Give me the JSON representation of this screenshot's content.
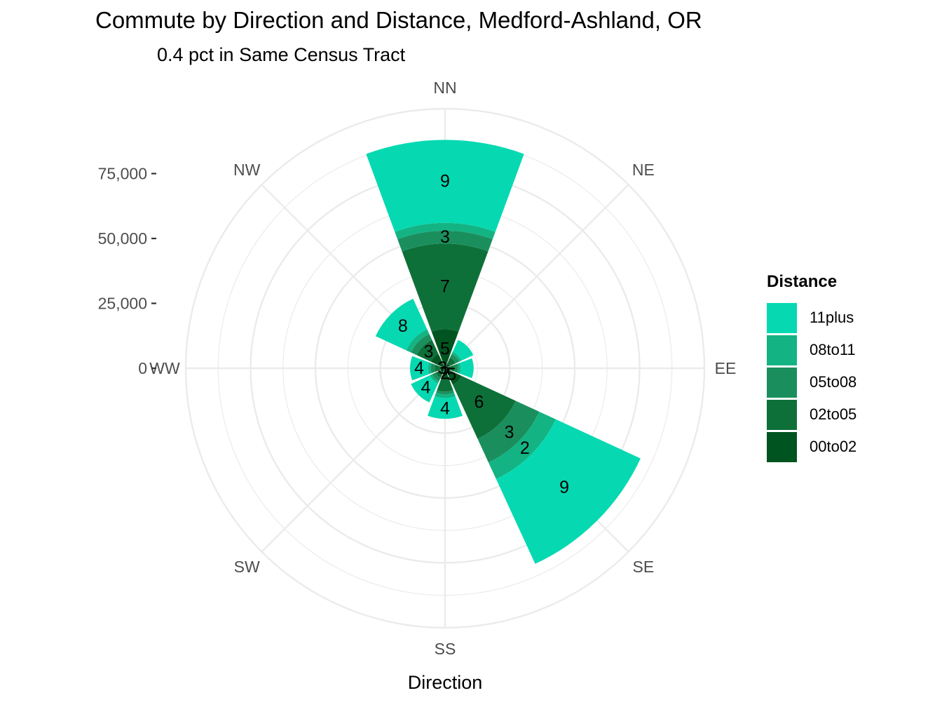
{
  "chart_data": {
    "type": "polar-stacked-bar",
    "title": "Commute by Direction and Distance, Medford-Ashland, OR",
    "subtitle": "0.4 pct in Same Census Tract",
    "xlabel": "Direction",
    "directions": [
      "NN",
      "NE",
      "EE",
      "SE",
      "SS",
      "SW",
      "WW",
      "NW"
    ],
    "radial_ticks": [
      0,
      25000,
      50000,
      75000
    ],
    "radial_tick_labels": [
      "0",
      "25,000",
      "50,000",
      "75,000"
    ],
    "rmax": 100000,
    "legend_title": "Distance",
    "series": [
      {
        "name": "00to02",
        "color": "#00541f",
        "values": [
          15000,
          2000,
          2000,
          7000,
          4000,
          2000,
          2000,
          6000
        ]
      },
      {
        "name": "02to05",
        "color": "#0e7039",
        "values": [
          33000,
          2500,
          1500,
          23000,
          5000,
          2000,
          2000,
          6000
        ]
      },
      {
        "name": "05to08",
        "color": "#1a8f5d",
        "values": [
          5000,
          1500,
          1500,
          10000,
          1000,
          1500,
          1500,
          2500
        ]
      },
      {
        "name": "08to11",
        "color": "#14b383",
        "values": [
          3000,
          1000,
          1000,
          7000,
          1500,
          1000,
          1000,
          2000
        ]
      },
      {
        "name": "11plus",
        "color": "#06d9b1",
        "values": [
          32000,
          5000,
          5000,
          36000,
          8000,
          8000,
          7000,
          13000
        ]
      }
    ],
    "bar_labels": [
      {
        "direction": "NN",
        "series": "00to02",
        "text": "5"
      },
      {
        "direction": "NN",
        "series": "02to05",
        "text": "7"
      },
      {
        "direction": "NN",
        "series": "05to08",
        "text": "3"
      },
      {
        "direction": "NN",
        "series": "11plus",
        "text": "9"
      },
      {
        "direction": "SE",
        "series": "00to02",
        "text": "5"
      },
      {
        "direction": "SE",
        "series": "02to05",
        "text": "6"
      },
      {
        "direction": "SE",
        "series": "05to08",
        "text": "3"
      },
      {
        "direction": "SE",
        "series": "08to11",
        "text": "2"
      },
      {
        "direction": "SE",
        "series": "11plus",
        "text": "9"
      },
      {
        "direction": "SS",
        "series": "00to02",
        "text": "2"
      },
      {
        "direction": "SS",
        "series": "11plus",
        "text": "4"
      },
      {
        "direction": "SW",
        "series": "11plus",
        "text": "4"
      },
      {
        "direction": "WW",
        "series": "00to02",
        "text": "3"
      },
      {
        "direction": "WW",
        "series": "11plus",
        "text": "4"
      },
      {
        "direction": "NW",
        "series": "02to05",
        "text": "3"
      },
      {
        "direction": "NW",
        "series": "11plus",
        "text": "8"
      }
    ],
    "grid": true,
    "legend_position": "right",
    "grid_color": "#ebebeb",
    "axis_text_color": "#4d4d4d"
  }
}
